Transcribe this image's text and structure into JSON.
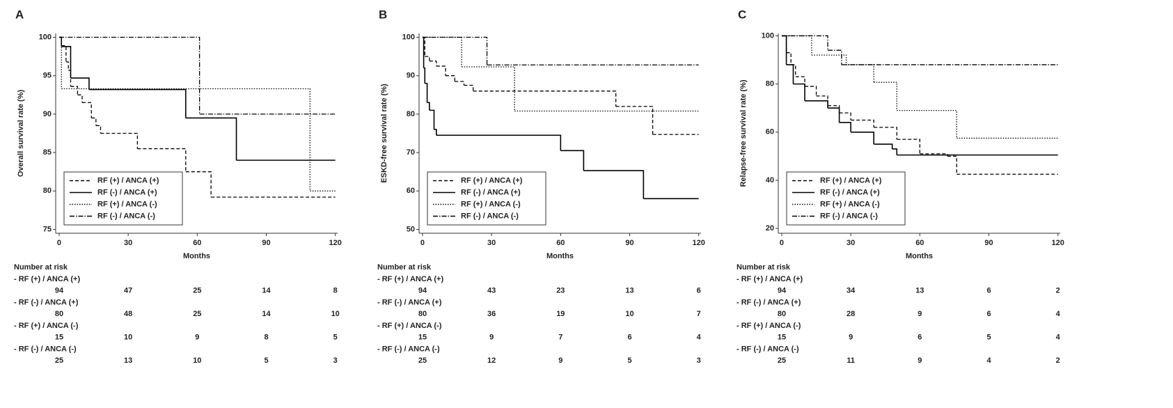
{
  "chart_data": [
    {
      "type": "line",
      "panel": "A",
      "ylabel": "Overall survival rate (%)",
      "xlabel": "Months",
      "xlim": [
        -1.5,
        121
      ],
      "xticks": [
        0,
        30,
        60,
        90,
        120
      ],
      "ylim": [
        74.5,
        100.5
      ],
      "yticks": [
        75,
        80,
        85,
        90,
        95,
        100
      ],
      "legend": "lower left",
      "series": [
        {
          "name": "RF (+) / ANCA (+)",
          "color": "#000000",
          "line_style": "dashed",
          "x": [
            0,
            1,
            3,
            4,
            5,
            8,
            10,
            14,
            16,
            18,
            34,
            55,
            66,
            120
          ],
          "values": [
            100,
            98.9,
            96.8,
            95.7,
            93.6,
            92.5,
            91.5,
            89.5,
            88.5,
            87.5,
            85.5,
            82.5,
            79.2,
            79.2
          ]
        },
        {
          "name": "RF (-) / ANCA (+)",
          "color": "#000000",
          "line_style": "solid",
          "x": [
            0,
            1,
            5,
            13,
            55,
            77,
            120
          ],
          "values": [
            100,
            98.8,
            94.7,
            93.2,
            89.5,
            84,
            84
          ]
        },
        {
          "name": "RF (+) / ANCA (-)",
          "color": "#000000",
          "line_style": "dotted",
          "x": [
            0,
            1,
            109,
            120
          ],
          "values": [
            100,
            93.3,
            80,
            80
          ]
        },
        {
          "name": "RF (-) / ANCA (-)",
          "color": "#000000",
          "line_style": "dashdot",
          "x": [
            0,
            61,
            120
          ],
          "values": [
            100,
            90,
            90
          ]
        }
      ],
      "risk_table": {
        "title": "Number at risk",
        "rows": [
          {
            "label": "- RF (+) / ANCA (+)",
            "counts": [
              94,
              47,
              25,
              14,
              8
            ]
          },
          {
            "label": "- RF (-) / ANCA (+)",
            "counts": [
              80,
              48,
              25,
              14,
              10
            ]
          },
          {
            "label": "- RF (+) / ANCA (-)",
            "counts": [
              15,
              10,
              9,
              8,
              5
            ]
          },
          {
            "label": "- RF (-) / ANCA (-)",
            "counts": [
              25,
              13,
              10,
              5,
              3
            ]
          }
        ]
      }
    },
    {
      "type": "line",
      "panel": "B",
      "ylabel": "ESKD-free survival rate (%)",
      "xlabel": "Months",
      "xlim": [
        -1.5,
        121
      ],
      "xticks": [
        0,
        30,
        60,
        90,
        120
      ],
      "ylim": [
        49,
        101
      ],
      "yticks": [
        50,
        60,
        70,
        80,
        90,
        100
      ],
      "legend": "lower left",
      "series": [
        {
          "name": "RF (+) / ANCA (+)",
          "color": "#000000",
          "line_style": "dashed",
          "x": [
            0,
            1,
            3,
            6,
            10,
            14,
            18,
            22,
            84,
            100,
            120
          ],
          "values": [
            100,
            95,
            93.8,
            92.5,
            90,
            88.5,
            87.5,
            86,
            82,
            74.7,
            74.7
          ]
        },
        {
          "name": "RF (-) / ANCA (+)",
          "color": "#000000",
          "line_style": "solid",
          "x": [
            0,
            0.5,
            1,
            2,
            3,
            5,
            6,
            60,
            70,
            96,
            120
          ],
          "values": [
            100,
            92,
            88,
            83,
            81,
            76,
            74.5,
            70.5,
            65.3,
            58,
            58
          ]
        },
        {
          "name": "RF (+) / ANCA (-)",
          "color": "#000000",
          "line_style": "dotted",
          "x": [
            0,
            17,
            40,
            120
          ],
          "values": [
            100,
            92.3,
            80.8,
            80.8
          ]
        },
        {
          "name": "RF (-) / ANCA (-)",
          "color": "#000000",
          "line_style": "dashdot",
          "x": [
            0,
            28,
            120
          ],
          "values": [
            100,
            92.8,
            92.8
          ]
        }
      ],
      "risk_table": {
        "title": "Number at risk",
        "rows": [
          {
            "label": "- RF (+) / ANCA (+)",
            "counts": [
              94,
              43,
              23,
              13,
              6
            ]
          },
          {
            "label": "- RF (-) / ANCA (+)",
            "counts": [
              80,
              36,
              19,
              10,
              7
            ]
          },
          {
            "label": "- RF (+) / ANCA (-)",
            "counts": [
              15,
              9,
              7,
              6,
              4
            ]
          },
          {
            "label": "- RF (-) / ANCA (-)",
            "counts": [
              25,
              12,
              9,
              5,
              3
            ]
          }
        ]
      }
    },
    {
      "type": "line",
      "panel": "C",
      "ylabel": "Relapse-free survival rate (%)",
      "xlabel": "Months",
      "xlim": [
        -1.5,
        121
      ],
      "xticks": [
        0,
        30,
        60,
        90,
        120
      ],
      "ylim": [
        18,
        101
      ],
      "yticks": [
        20,
        40,
        60,
        80,
        100
      ],
      "legend": "lower left",
      "series": [
        {
          "name": "RF (+) / ANCA (+)",
          "color": "#000000",
          "line_style": "dashed",
          "x": [
            0,
            2,
            4,
            6,
            10,
            15,
            20,
            25,
            30,
            40,
            50,
            60,
            72,
            76,
            120
          ],
          "values": [
            100,
            93,
            88,
            83,
            79,
            75,
            71,
            68,
            65,
            62,
            57,
            51,
            50,
            42.5,
            42.5
          ]
        },
        {
          "name": "RF (-) / ANCA (+)",
          "color": "#000000",
          "line_style": "solid",
          "x": [
            0,
            2,
            5,
            10,
            20,
            25,
            30,
            40,
            48,
            50,
            120
          ],
          "values": [
            100,
            88,
            80,
            73,
            70,
            64,
            60,
            55,
            53,
            50.5,
            50.5
          ]
        },
        {
          "name": "RF (+) / ANCA (-)",
          "color": "#000000",
          "line_style": "dotted",
          "x": [
            0,
            13,
            28,
            40,
            50,
            76,
            120
          ],
          "values": [
            100,
            92,
            88,
            80.7,
            69,
            57.5,
            57.5
          ]
        },
        {
          "name": "RF (-) / ANCA (-)",
          "color": "#000000",
          "line_style": "dashdot",
          "x": [
            0,
            20,
            26,
            120
          ],
          "values": [
            100,
            94,
            88,
            88
          ]
        }
      ],
      "risk_table": {
        "title": "Number at risk",
        "rows": [
          {
            "label": "- RF (+) / ANCA (+)",
            "counts": [
              94,
              34,
              13,
              6,
              2
            ]
          },
          {
            "label": "- RF (-) / ANCA (+)",
            "counts": [
              80,
              28,
              9,
              6,
              4
            ]
          },
          {
            "label": "- RF (+) / ANCA (-)",
            "counts": [
              15,
              9,
              6,
              5,
              4
            ]
          },
          {
            "label": "- RF (-) / ANCA (-)",
            "counts": [
              25,
              11,
              9,
              4,
              2
            ]
          }
        ]
      }
    }
  ]
}
